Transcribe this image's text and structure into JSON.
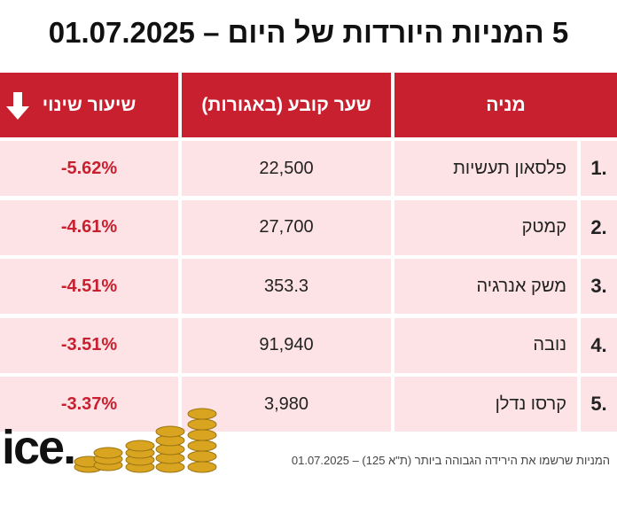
{
  "title": "5 המניות היורדות של היום – 01.07.2025",
  "table": {
    "headers": [
      "מניה",
      "שער קובע (באגורות)",
      "שיעור שינוי"
    ],
    "rows": [
      [
        "1.",
        "פלסאון תעשיות",
        "22,500",
        "-5.62%"
      ],
      [
        "2.",
        "קמטק",
        "27,700",
        "-4.61%"
      ],
      [
        "3.",
        "משק אנרגיה",
        "353.3",
        "-4.51%"
      ],
      [
        "4.",
        "נובה",
        "91,940",
        "-3.51%"
      ],
      [
        "5.",
        "קרסו נדלן",
        "3,980",
        "-3.37%"
      ]
    ]
  },
  "footer": {
    "note": "המניות שרשמו את הירידה הגבוהה ביותר (ת\"א 125) – 01.07.2025",
    "logo": "ice."
  }
}
